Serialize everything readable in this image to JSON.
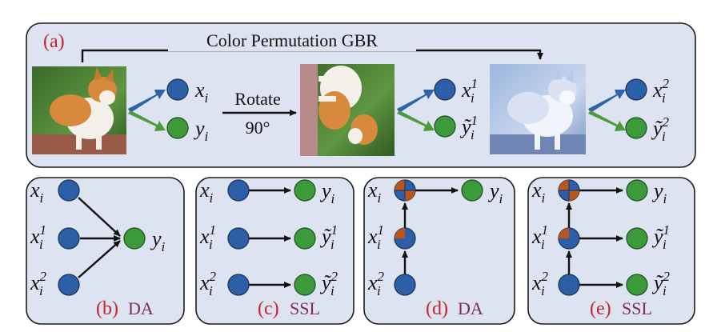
{
  "colors": {
    "panel_fill": "#dde3f0",
    "node_blue": "#2b5fa6",
    "node_green": "#3d9a3a",
    "quadrant_orange": "#b8561e",
    "arrow_blue": "#2f63a8",
    "arrow_green": "#4c9a3c",
    "tag_red": "#c0272d",
    "tag_purple": "#7a2d5c"
  },
  "top": {
    "tag": "(a)",
    "permutation_label": "Color Permutation GBR",
    "rotate_label": "Rotate",
    "rotate_angle": "90°",
    "images": [
      "dog-photo-original",
      "dog-photo-rotated",
      "dog-photo-color-permuted"
    ],
    "x_labels": [
      "x",
      "x",
      "x"
    ],
    "x_subscripts": [
      "i",
      "i",
      "i"
    ],
    "x_supers": [
      "",
      "1",
      "2"
    ],
    "y_labels": [
      "y",
      "ỹ",
      "ỹ"
    ],
    "y_subscripts": [
      "i",
      "i",
      "i"
    ],
    "y_supers": [
      "",
      "1",
      "2"
    ]
  },
  "panels": [
    {
      "tag": "(b)",
      "word": "DA"
    },
    {
      "tag": "(c)",
      "word": "SSL"
    },
    {
      "tag": "(d)",
      "word": "DA"
    },
    {
      "tag": "(e)",
      "word": "SSL"
    }
  ],
  "labels": {
    "x": "x",
    "y": "y",
    "y_tilde": "ỹ",
    "sub_i": "i",
    "sup_1": "1",
    "sup_2": "2"
  }
}
